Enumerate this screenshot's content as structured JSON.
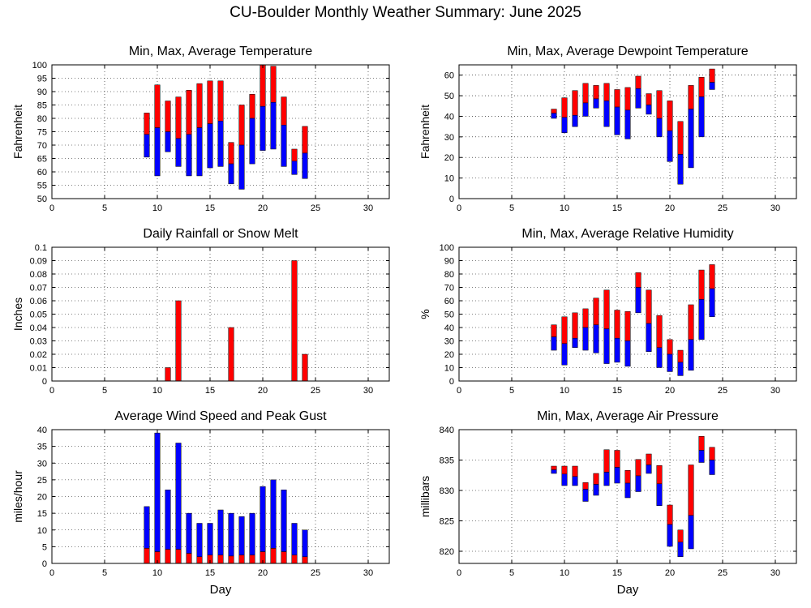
{
  "title": "CU-Boulder Monthly Weather Summary: June 2025",
  "colors": {
    "max_part": "#ff0000",
    "min_part": "#0000ff",
    "grid": "#000000"
  },
  "chart_data": [
    {
      "id": "temperature",
      "type": "bar",
      "title": "Min, Max, Average Temperature",
      "xlabel": "",
      "ylabel": "Fahrenheit",
      "xlim": [
        0,
        32
      ],
      "ylim": [
        50,
        100
      ],
      "xticks": [
        0,
        5,
        10,
        15,
        20,
        25,
        30
      ],
      "yticks": [
        50,
        55,
        60,
        65,
        70,
        75,
        80,
        85,
        90,
        95,
        100
      ],
      "grid": "dotted horizontal and vertical",
      "days": [
        9,
        10,
        11,
        12,
        13,
        14,
        15,
        16,
        17,
        18,
        19,
        20,
        21,
        22,
        23,
        24
      ],
      "min": [
        65.5,
        58.5,
        67.5,
        62,
        58.5,
        58.5,
        61.5,
        62,
        55.5,
        53.5,
        63,
        68,
        68.5,
        62,
        59,
        57.5
      ],
      "avg": [
        74,
        76.5,
        75,
        72.5,
        74,
        76.5,
        78,
        79,
        63,
        70,
        80,
        84.5,
        86,
        77.5,
        64,
        67
      ],
      "max": [
        82,
        92.5,
        86.5,
        88,
        90.5,
        93,
        94,
        94,
        71,
        85,
        89,
        100,
        99.5,
        88,
        68.5,
        77
      ]
    },
    {
      "id": "dewpoint",
      "type": "bar",
      "title": "Min, Max, Average Dewpoint Temperature",
      "xlabel": "",
      "ylabel": "Fahrenheit",
      "xlim": [
        0,
        32
      ],
      "ylim": [
        0,
        65
      ],
      "xticks": [
        0,
        5,
        10,
        15,
        20,
        25,
        30
      ],
      "yticks": [
        0,
        10,
        20,
        30,
        40,
        50,
        60
      ],
      "grid": "dotted horizontal and vertical",
      "days": [
        9,
        10,
        11,
        12,
        13,
        14,
        15,
        16,
        17,
        18,
        19,
        20,
        21,
        22,
        23,
        24
      ],
      "min": [
        39,
        32,
        35,
        40,
        44,
        35,
        31,
        29,
        44,
        41,
        30,
        18,
        7,
        15,
        30,
        53
      ],
      "avg": [
        41.5,
        39.5,
        40.5,
        46.5,
        48.5,
        47.5,
        44.5,
        43,
        53.5,
        45.5,
        39,
        33,
        21.5,
        43.5,
        49.5,
        56.5
      ],
      "max": [
        43.5,
        49,
        52.5,
        56,
        55,
        56,
        53,
        54,
        59.5,
        51,
        52.5,
        47.5,
        37.5,
        55,
        59,
        63
      ]
    },
    {
      "id": "rainfall",
      "type": "bar",
      "title": "Daily Rainfall or Snow Melt",
      "xlabel": "",
      "ylabel": "Inches",
      "xlim": [
        0,
        32
      ],
      "ylim": [
        0,
        0.1
      ],
      "xticks": [
        0,
        5,
        10,
        15,
        20,
        25,
        30
      ],
      "yticks": [
        0,
        0.01,
        0.02,
        0.03,
        0.04,
        0.05,
        0.06,
        0.07,
        0.08,
        0.09,
        0.1
      ],
      "grid": "dotted horizontal and vertical",
      "days": [
        11,
        12,
        17,
        23,
        24
      ],
      "values": [
        0.01,
        0.06,
        0.04,
        0.09,
        0.02
      ]
    },
    {
      "id": "humidity",
      "type": "bar",
      "title": "Min, Max, Average Relative Humidity",
      "xlabel": "",
      "ylabel": "%",
      "xlim": [
        0,
        32
      ],
      "ylim": [
        0,
        100
      ],
      "xticks": [
        0,
        5,
        10,
        15,
        20,
        25,
        30
      ],
      "yticks": [
        0,
        10,
        20,
        30,
        40,
        50,
        60,
        70,
        80,
        90,
        100
      ],
      "grid": "dotted horizontal and vertical",
      "days": [
        9,
        10,
        11,
        12,
        13,
        14,
        15,
        16,
        17,
        18,
        19,
        20,
        21,
        22,
        23,
        24
      ],
      "min": [
        23,
        12,
        25,
        23,
        21,
        13,
        14,
        11,
        51,
        22,
        10,
        7,
        4,
        8,
        31,
        48
      ],
      "avg": [
        33,
        28,
        32,
        40,
        42,
        39,
        32,
        30,
        70,
        43,
        25,
        20,
        14,
        31,
        61,
        69
      ],
      "max": [
        42,
        48,
        51,
        54,
        62,
        68,
        53,
        52,
        81,
        68,
        49,
        31,
        23,
        57,
        83,
        87
      ]
    },
    {
      "id": "wind",
      "type": "bar",
      "title": "Average Wind Speed and Peak Gust",
      "xlabel": "Day",
      "ylabel": "miles/hour",
      "xlim": [
        0,
        32
      ],
      "ylim": [
        0,
        40
      ],
      "xticks": [
        0,
        5,
        10,
        15,
        20,
        25,
        30
      ],
      "yticks": [
        0,
        5,
        10,
        15,
        20,
        25,
        30,
        35,
        40
      ],
      "grid": "dotted horizontal and vertical",
      "days": [
        9,
        10,
        11,
        12,
        13,
        14,
        15,
        16,
        17,
        18,
        19,
        20,
        21,
        22,
        23,
        24
      ],
      "avg_speed": [
        4.5,
        3.5,
        4.2,
        4.2,
        3,
        2,
        2.5,
        2.5,
        2.2,
        2.5,
        2.5,
        3.5,
        4.5,
        3.5,
        2.5,
        2
      ],
      "peak_gust": [
        17,
        39,
        22,
        36,
        15,
        12,
        12,
        16,
        15,
        14,
        15,
        23,
        25,
        22,
        12,
        10
      ]
    },
    {
      "id": "pressure",
      "type": "bar",
      "title": "Min, Max, Average Air Pressure",
      "xlabel": "Day",
      "ylabel": "millibars",
      "xlim": [
        0,
        32
      ],
      "ylim": [
        818,
        840
      ],
      "xticks": [
        0,
        5,
        10,
        15,
        20,
        25,
        30
      ],
      "yticks": [
        820,
        825,
        830,
        835,
        840
      ],
      "grid": "dotted horizontal and vertical",
      "days": [
        9,
        10,
        11,
        12,
        13,
        14,
        15,
        16,
        17,
        18,
        19,
        20,
        21,
        22,
        23,
        24
      ],
      "min": [
        832.8,
        830.8,
        830.8,
        828.2,
        829.2,
        830.8,
        831.2,
        828.8,
        829.8,
        832.8,
        827.5,
        820.8,
        819.1,
        820.4,
        834.6,
        832.6
      ],
      "avg": [
        833.4,
        832.7,
        832.3,
        830.2,
        831,
        833,
        833.8,
        831.2,
        832.4,
        834.2,
        831.1,
        824.4,
        821.5,
        825.9,
        836.6,
        835
      ],
      "max": [
        834,
        834,
        834,
        831.3,
        832.8,
        836.7,
        836.6,
        833.3,
        835.1,
        836,
        834.1,
        827.6,
        823.5,
        834.2,
        838.9,
        837.1
      ]
    }
  ]
}
